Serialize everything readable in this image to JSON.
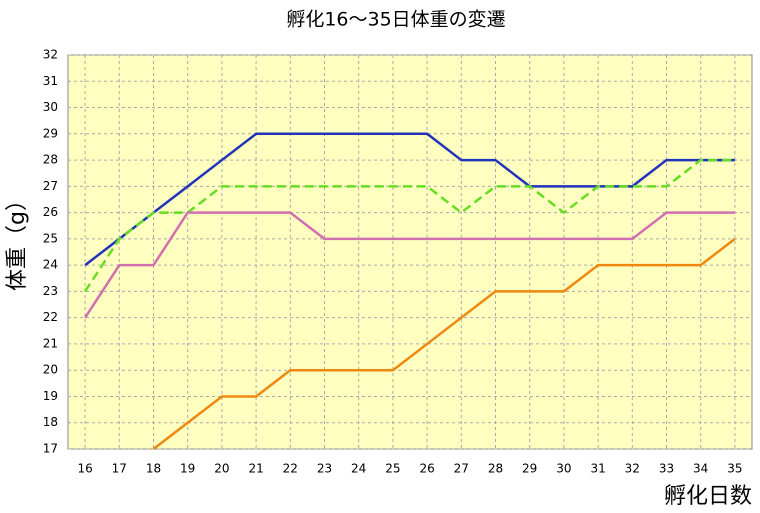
{
  "chart_data": {
    "type": "line",
    "title": "孵化16～35日体重の変遷",
    "y_label": "体重（g）",
    "x_label": "孵化日数",
    "categories": [
      "16",
      "17",
      "18",
      "19",
      "20",
      "21",
      "22",
      "23",
      "24",
      "25",
      "26",
      "27",
      "28",
      "29",
      "30",
      "31",
      "32",
      "33",
      "34",
      "35"
    ],
    "ylim": [
      17,
      32
    ],
    "yticks": [
      17,
      18,
      19,
      20,
      21,
      22,
      23,
      24,
      25,
      26,
      27,
      28,
      29,
      30,
      31,
      32
    ],
    "grid": true,
    "series": [
      {
        "color": "#2233bb",
        "dashed": false,
        "values": [
          24,
          25,
          26,
          27,
          28,
          29,
          29,
          29,
          29,
          29,
          29,
          28,
          28,
          27,
          27,
          27,
          27,
          28,
          28,
          28
        ]
      },
      {
        "color": "#66dd22",
        "dashed": true,
        "values": [
          23,
          25,
          26,
          26,
          27,
          27,
          27,
          27,
          27,
          27,
          27,
          26,
          27,
          27,
          26,
          27,
          27,
          27,
          28,
          28
        ]
      },
      {
        "color": "#d070b0",
        "dashed": false,
        "values": [
          22,
          24,
          24,
          26,
          26,
          26,
          26,
          25,
          25,
          25,
          25,
          25,
          25,
          25,
          25,
          25,
          25,
          26,
          26,
          26
        ]
      },
      {
        "color": "#ee8811",
        "dashed": false,
        "values": [
          null,
          null,
          17,
          18,
          19,
          19,
          20,
          20,
          20,
          20,
          21,
          22,
          23,
          23,
          23,
          24,
          24,
          24,
          24,
          25
        ]
      }
    ]
  }
}
